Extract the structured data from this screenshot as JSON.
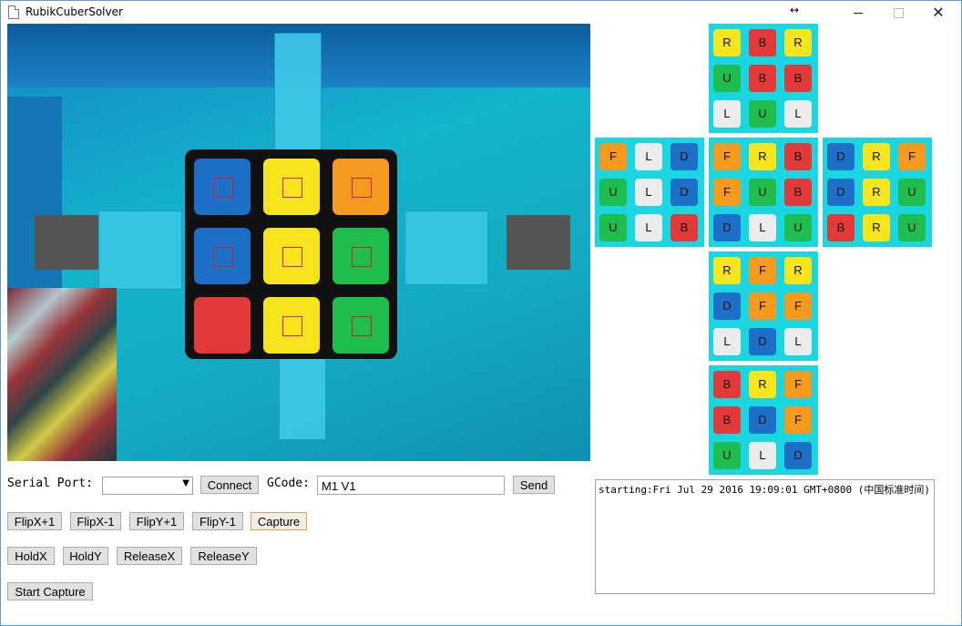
{
  "window": {
    "title": "RubikCuberSolver",
    "resize_glyph": "↔",
    "close_glyph": "✕"
  },
  "colors": {
    "red": "#e23a3a",
    "orange": "#f49a1e",
    "yellow": "#f6e51c",
    "green": "#1ebd4e",
    "blue": "#1e6fc8",
    "white": "#ececec"
  },
  "net": {
    "faces": [
      {
        "id": "top",
        "cells": [
          [
            "R",
            "yellow"
          ],
          [
            "B",
            "red"
          ],
          [
            "R",
            "yellow"
          ],
          [
            "U",
            "green"
          ],
          [
            "B",
            "red"
          ],
          [
            "B",
            "red"
          ],
          [
            "L",
            "white"
          ],
          [
            "U",
            "green"
          ],
          [
            "L",
            "white"
          ]
        ]
      },
      {
        "id": "left",
        "cells": [
          [
            "F",
            "orange"
          ],
          [
            "L",
            "white"
          ],
          [
            "D",
            "blue"
          ],
          [
            "U",
            "green"
          ],
          [
            "L",
            "white"
          ],
          [
            "D",
            "blue"
          ],
          [
            "U",
            "green"
          ],
          [
            "L",
            "white"
          ],
          [
            "B",
            "red"
          ]
        ]
      },
      {
        "id": "front",
        "cells": [
          [
            "F",
            "orange"
          ],
          [
            "R",
            "yellow"
          ],
          [
            "B",
            "red"
          ],
          [
            "F",
            "orange"
          ],
          [
            "U",
            "green"
          ],
          [
            "B",
            "red"
          ],
          [
            "D",
            "blue"
          ],
          [
            "L",
            "white"
          ],
          [
            "U",
            "green"
          ]
        ]
      },
      {
        "id": "right",
        "cells": [
          [
            "D",
            "blue"
          ],
          [
            "R",
            "yellow"
          ],
          [
            "F",
            "orange"
          ],
          [
            "D",
            "blue"
          ],
          [
            "R",
            "yellow"
          ],
          [
            "U",
            "green"
          ],
          [
            "B",
            "red"
          ],
          [
            "R",
            "yellow"
          ],
          [
            "U",
            "green"
          ]
        ]
      },
      {
        "id": "down",
        "cells": [
          [
            "R",
            "yellow"
          ],
          [
            "F",
            "orange"
          ],
          [
            "R",
            "yellow"
          ],
          [
            "D",
            "blue"
          ],
          [
            "F",
            "orange"
          ],
          [
            "F",
            "orange"
          ],
          [
            "L",
            "white"
          ],
          [
            "D",
            "blue"
          ],
          [
            "L",
            "white"
          ]
        ]
      },
      {
        "id": "back",
        "cells": [
          [
            "B",
            "red"
          ],
          [
            "R",
            "yellow"
          ],
          [
            "F",
            "orange"
          ],
          [
            "B",
            "red"
          ],
          [
            "D",
            "blue"
          ],
          [
            "F",
            "orange"
          ],
          [
            "U",
            "green"
          ],
          [
            "L",
            "white"
          ],
          [
            "D",
            "blue"
          ]
        ]
      }
    ]
  },
  "camera_cube": [
    "blue",
    "yellow",
    "orange",
    "blue",
    "yellow",
    "green",
    "red",
    "yellow",
    "green"
  ],
  "controls": {
    "serial_label": "Serial Port:",
    "serial_value": "",
    "connect_label": "Connect",
    "gcode_label": "GCode:",
    "gcode_value": "M1 V1",
    "send_label": "Send",
    "flipx_plus": "FlipX+1",
    "flipx_minus": "FlipX-1",
    "flipy_plus": "FlipY+1",
    "flipy_minus": "FlipY-1",
    "capture": "Capture",
    "holdx": "HoldX",
    "holdy": "HoldY",
    "releasex": "ReleaseX",
    "releasey": "ReleaseY",
    "start_capture": "Start Capture"
  },
  "log": {
    "text": "starting:Fri Jul 29 2016 19:09:01 GMT+0800 (中国标准时间)"
  }
}
